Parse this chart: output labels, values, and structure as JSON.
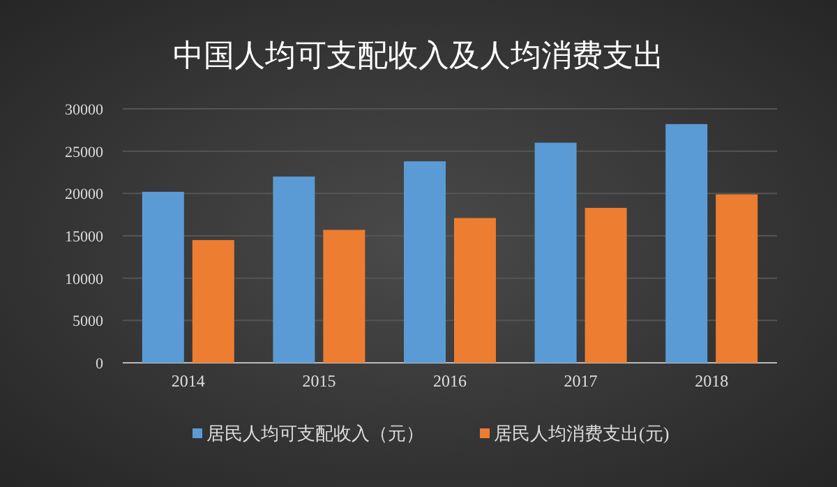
{
  "chart_data": {
    "type": "bar",
    "title": "中国人均可支配收入及人均消费支出",
    "categories": [
      "2014",
      "2015",
      "2016",
      "2017",
      "2018"
    ],
    "series": [
      {
        "name": "居民人均可支配收入（元）",
        "color": "#5b9bd5",
        "values": [
          20200,
          22000,
          23800,
          26000,
          28200
        ]
      },
      {
        "name": "居民人均消费支出(元)",
        "color": "#ed7d31",
        "values": [
          14500,
          15700,
          17100,
          18300,
          19900
        ]
      }
    ],
    "ylim": [
      0,
      30000
    ],
    "yticks": [
      0,
      5000,
      10000,
      15000,
      20000,
      25000,
      30000
    ],
    "grid": "y",
    "legend": "bottom"
  }
}
